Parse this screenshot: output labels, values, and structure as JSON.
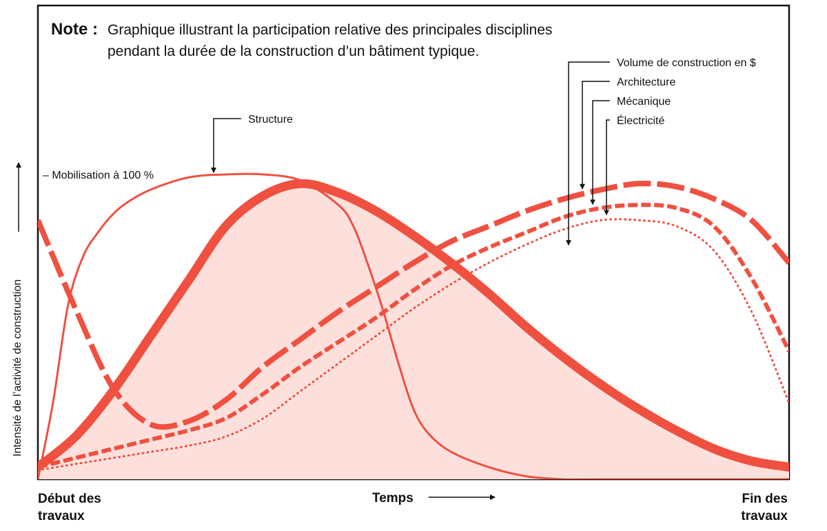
{
  "note": {
    "label": "Note :",
    "line1": "Graphique illustrant la participation relative des principales disciplines",
    "line2": "pendant la durée de la construction d’un bâtiment typique."
  },
  "colors": {
    "accent": "#f05040",
    "fill": "#fde0dc",
    "frame": "#111111"
  },
  "chart_data": {
    "type": "line",
    "ylabel": "Intensité de l’activité de construction",
    "xlabel": "Temps",
    "x_start_label": [
      "Début des",
      "travaux"
    ],
    "x_end_label": [
      "Fin des",
      "travaux"
    ],
    "xlim": [
      0,
      100
    ],
    "ylim": [
      0,
      100
    ],
    "reference": {
      "label": "– Mobilisation à 100 %",
      "y": 100
    },
    "series": [
      {
        "name": "Volume de construction en $",
        "style": "solid-thick-filled",
        "x": [
          0,
          5,
          10,
          15,
          20,
          25,
          30,
          35,
          40,
          45,
          50,
          55,
          60,
          65,
          70,
          75,
          80,
          85,
          90,
          95,
          100
        ],
        "y": [
          4,
          14,
          29,
          47,
          65,
          83,
          93,
          97,
          94,
          88,
          80,
          71,
          61,
          50,
          40,
          31,
          23,
          16,
          10,
          6,
          4
        ]
      },
      {
        "name": "Architecture",
        "style": "long-dash",
        "x": [
          0,
          5,
          10,
          15,
          20,
          25,
          30,
          35,
          40,
          45,
          50,
          55,
          60,
          65,
          70,
          75,
          80,
          85,
          90,
          95,
          100
        ],
        "y": [
          85,
          56,
          30,
          18,
          19,
          26,
          37,
          46,
          55,
          63,
          71,
          78,
          83,
          88,
          92,
          95,
          97,
          96,
          92,
          85,
          71
        ]
      },
      {
        "name": "Mécanique",
        "style": "short-dash",
        "x": [
          0,
          5,
          10,
          15,
          20,
          25,
          30,
          35,
          40,
          45,
          50,
          55,
          60,
          65,
          70,
          75,
          80,
          85,
          90,
          95,
          100
        ],
        "y": [
          4,
          7,
          10,
          13,
          16,
          20,
          28,
          37,
          45,
          53,
          62,
          70,
          76,
          81,
          86,
          89,
          90,
          89,
          83,
          66,
          42
        ]
      },
      {
        "name": "Électricité",
        "style": "dotted",
        "x": [
          0,
          5,
          10,
          15,
          20,
          25,
          30,
          35,
          40,
          45,
          50,
          55,
          60,
          65,
          70,
          75,
          80,
          85,
          90,
          95,
          100
        ],
        "y": [
          3,
          5,
          7,
          9,
          11,
          14,
          20,
          29,
          38,
          47,
          56,
          64,
          71,
          77,
          82,
          85,
          85,
          83,
          75,
          55,
          25
        ]
      },
      {
        "name": "Structure",
        "style": "solid-thin",
        "x": [
          0,
          2,
          4,
          6,
          8,
          10,
          12,
          15,
          20,
          25,
          30,
          35,
          40,
          42,
          44,
          46,
          48,
          50,
          52,
          55,
          60,
          65,
          70,
          75,
          100
        ],
        "y": [
          0,
          25,
          57,
          73,
          81,
          87,
          91,
          95,
          99,
          100,
          100,
          98,
          90,
          83,
          70,
          55,
          38,
          23,
          15,
          9,
          4,
          1,
          0,
          0,
          0
        ]
      }
    ]
  }
}
